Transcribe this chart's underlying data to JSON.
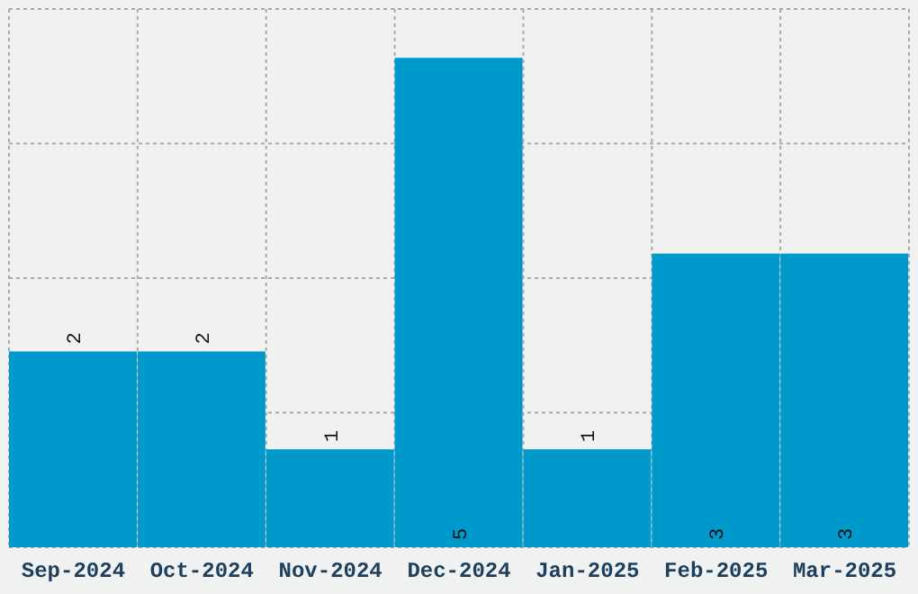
{
  "chart_data": {
    "type": "bar",
    "categories": [
      "Sep-2024",
      "Oct-2024",
      "Nov-2024",
      "Dec-2024",
      "Jan-2025",
      "Feb-2025",
      "Mar-2025"
    ],
    "values": [
      2,
      2,
      1,
      5,
      1,
      3,
      3
    ],
    "color": "#0099cc",
    "ylim": [
      0,
      5.5
    ],
    "yticks": [
      {
        "value": 0,
        "label": null
      },
      {
        "value": 1.375,
        "label": null
      },
      {
        "value": 2.75,
        "label": null
      },
      {
        "value": 4.125,
        "label": null
      },
      {
        "value": 5.5,
        "label": null
      }
    ],
    "grid": true,
    "tick_labels": "x",
    "data_labels": true
  }
}
